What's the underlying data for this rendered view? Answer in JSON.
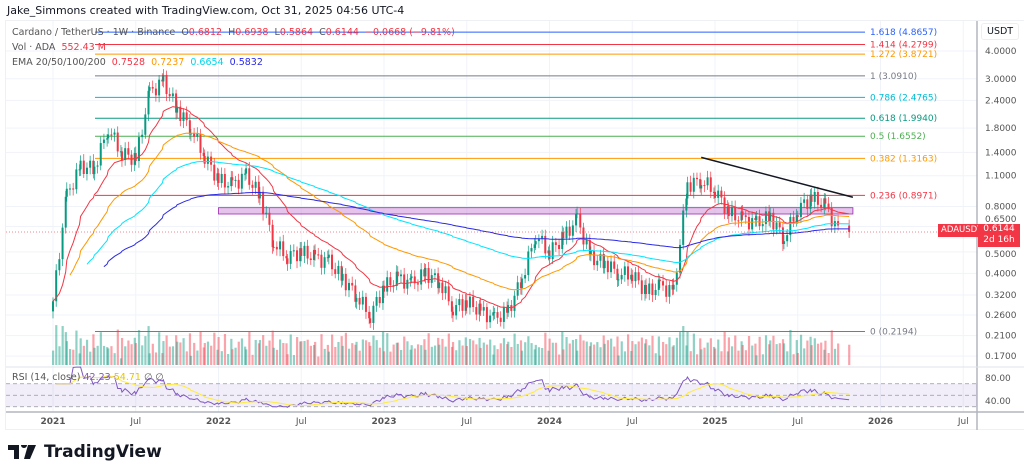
{
  "credit": "Jake_Simmons created with TradingView.com, Oct 31, 2025 04:56 UTC-4",
  "legend": {
    "symbol": "Cardano / TetherUS · 1W · Binance",
    "open_label": "O",
    "open": "0.6812",
    "high_label": "H",
    "high": "0.6938",
    "low_label": "L",
    "low": "0.5864",
    "close_label": "C",
    "close": "0.6144",
    "change": "−0.0668 (−9.81%)",
    "vol_label": "Vol · ADA",
    "vol": "552.43 M",
    "ema_label": "EMA 20/50/100/200",
    "ema": [
      "0.7528",
      "0.7237",
      "0.6654",
      "0.5832"
    ],
    "rsi_label": "RSI (14, close)",
    "rsi": [
      "42.23",
      "54.71"
    ],
    "rsi_icons": [
      "∅",
      "∅"
    ]
  },
  "axis": {
    "currency": "USDT",
    "price_ticks": [
      "4.0000",
      "3.0000",
      "2.4000",
      "1.8000",
      "1.4000",
      "1.1000",
      "0.8000",
      "0.6500",
      "0.5000",
      "0.4000",
      "0.3200",
      "0.2600",
      "0.2100",
      "0.1700"
    ],
    "rsi_ticks": [
      "80.00",
      "40.00"
    ],
    "time_ticks": [
      "2021",
      "Jul",
      "2022",
      "Jul",
      "2023",
      "Jul",
      "2024",
      "Jul",
      "2025",
      "Jul",
      "2026",
      "Jul"
    ],
    "last_price_tag": {
      "symbol": "ADAUSDT",
      "price": "0.6144",
      "countdown": "2d 16h",
      "color": "#f23645"
    }
  },
  "colors": {
    "up": "#089981",
    "down": "#f23645",
    "ema": [
      "#f23645",
      "#ff9800",
      "#00e5ff",
      "#2a2ae6"
    ],
    "rsi": "#7e57c2",
    "rsi_ma": "#ffeb3b",
    "zone": "#ce93d8"
  },
  "brand": "TradingView",
  "chart_data": {
    "type": "candlestick",
    "scale": "log",
    "ylim": [
      0.16,
      4.6
    ],
    "grid": true,
    "xrange": [
      "2020-10",
      "2026-08"
    ],
    "fib_levels": [
      {
        "label": "1.618 (4.8657)",
        "price": 4.8657,
        "color": "#2962ff"
      },
      {
        "label": "1.414 (4.2799)",
        "price": 4.2799,
        "color": "#f23645"
      },
      {
        "label": "1.272 (3.8721)",
        "price": 3.8721,
        "color": "#ff9800"
      },
      {
        "label": "1 (3.0910)",
        "price": 3.091,
        "color": "#787b86"
      },
      {
        "label": "0.786 (2.4765)",
        "price": 2.4765,
        "color": "#00bcd4"
      },
      {
        "label": "0.618 (1.9940)",
        "price": 1.994,
        "color": "#089981"
      },
      {
        "label": "0.5 (1.6552)",
        "price": 1.6552,
        "color": "#4caf50"
      },
      {
        "label": "0.382 (1.3163)",
        "price": 1.3163,
        "color": "#ff9800"
      },
      {
        "label": "0.236 (0.8971)",
        "price": 0.8971,
        "color": "#f23645"
      },
      {
        "label": "0 (0.2194)",
        "price": 0.2194,
        "color": "#787b86"
      }
    ],
    "zone": {
      "from": "2022-01",
      "to": "2025-11",
      "low": 0.74,
      "high": 0.79
    },
    "trendline": [
      {
        "date": "2024-12",
        "price": 1.33
      },
      {
        "date": "2025-11",
        "price": 0.88
      }
    ],
    "monthly_close": [
      [
        "2021-01",
        0.3
      ],
      [
        "2021-02",
        0.9
      ],
      [
        "2021-03",
        1.2
      ],
      [
        "2021-04",
        1.2
      ],
      [
        "2021-05",
        1.8
      ],
      [
        "2021-06",
        1.4
      ],
      [
        "2021-07",
        1.3
      ],
      [
        "2021-08",
        2.6
      ],
      [
        "2021-09",
        2.9
      ],
      [
        "2021-10",
        2.2
      ],
      [
        "2021-11",
        1.8
      ],
      [
        "2021-12",
        1.35
      ],
      [
        "2022-01",
        1.05
      ],
      [
        "2022-02",
        1.0
      ],
      [
        "2022-03",
        1.1
      ],
      [
        "2022-04",
        0.9
      ],
      [
        "2022-05",
        0.55
      ],
      [
        "2022-06",
        0.48
      ],
      [
        "2022-07",
        0.5
      ],
      [
        "2022-08",
        0.47
      ],
      [
        "2022-09",
        0.45
      ],
      [
        "2022-10",
        0.38
      ],
      [
        "2022-11",
        0.32
      ],
      [
        "2022-12",
        0.26
      ],
      [
        "2023-01",
        0.35
      ],
      [
        "2023-02",
        0.38
      ],
      [
        "2023-03",
        0.36
      ],
      [
        "2023-04",
        0.4
      ],
      [
        "2023-05",
        0.37
      ],
      [
        "2023-06",
        0.28
      ],
      [
        "2023-07",
        0.3
      ],
      [
        "2023-08",
        0.27
      ],
      [
        "2023-09",
        0.25
      ],
      [
        "2023-10",
        0.27
      ],
      [
        "2023-11",
        0.38
      ],
      [
        "2023-12",
        0.6
      ],
      [
        "2024-01",
        0.5
      ],
      [
        "2024-02",
        0.58
      ],
      [
        "2024-03",
        0.7
      ],
      [
        "2024-04",
        0.47
      ],
      [
        "2024-05",
        0.45
      ],
      [
        "2024-06",
        0.4
      ],
      [
        "2024-07",
        0.4
      ],
      [
        "2024-08",
        0.33
      ],
      [
        "2024-09",
        0.35
      ],
      [
        "2024-10",
        0.33
      ],
      [
        "2024-11",
        1.0
      ],
      [
        "2024-12",
        1.05
      ],
      [
        "2025-01",
        0.95
      ],
      [
        "2025-02",
        0.75
      ],
      [
        "2025-03",
        0.7
      ],
      [
        "2025-04",
        0.67
      ],
      [
        "2025-05",
        0.72
      ],
      [
        "2025-06",
        0.58
      ],
      [
        "2025-07",
        0.78
      ],
      [
        "2025-08",
        0.88
      ],
      [
        "2025-09",
        0.8
      ],
      [
        "2025-10",
        0.6144
      ]
    ]
  }
}
